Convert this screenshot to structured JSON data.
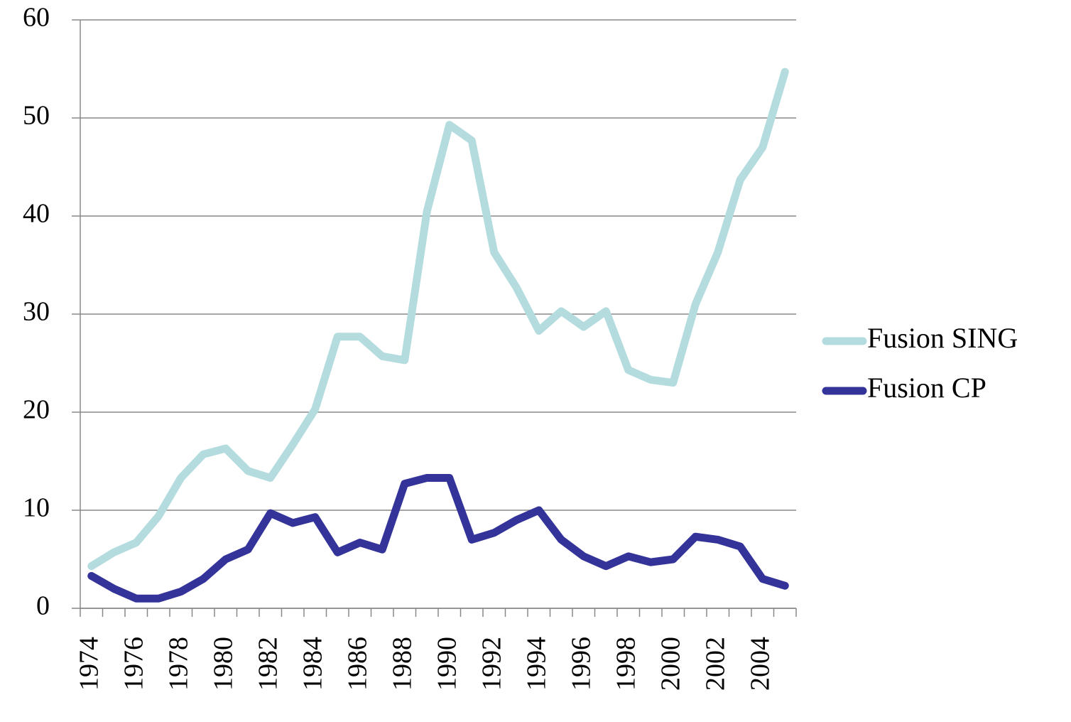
{
  "chart_data": {
    "type": "line",
    "categories": [
      "1974",
      null,
      "1976",
      null,
      "1978",
      null,
      "1980",
      null,
      "1982",
      null,
      "1984",
      null,
      "1986",
      null,
      "1988",
      null,
      "1990",
      null,
      "1992",
      null,
      "1994",
      null,
      "1996",
      null,
      "1998",
      null,
      "2000",
      null,
      "2002",
      null,
      "2004",
      null
    ],
    "series": [
      {
        "name": "Fusion SING",
        "color": "#b4dcdf",
        "values": [
          4.3,
          5.7,
          6.7,
          9.4,
          13.3,
          15.7,
          16.3,
          14,
          13.3,
          16.7,
          20.3,
          27.7,
          27.7,
          25.7,
          25.3,
          40.5,
          49.3,
          47.7,
          36.3,
          32.7,
          28.3,
          30.3,
          28.7,
          30.3,
          24.3,
          23.3,
          23,
          31,
          36.3,
          43.7,
          47,
          54.7
        ]
      },
      {
        "name": "Fusion CP",
        "color": "#333399",
        "values": [
          3.3,
          2,
          1,
          1,
          1.7,
          3,
          5,
          6,
          9.7,
          8.7,
          9.3,
          5.7,
          6.7,
          6,
          12.7,
          13.3,
          13.3,
          7,
          7.7,
          9,
          10,
          7,
          5.3,
          4.3,
          5.3,
          4.7,
          5,
          7.3,
          7,
          6.3,
          3,
          2.3
        ]
      }
    ],
    "ylim": [
      0,
      60
    ],
    "yticks": [
      0,
      10,
      20,
      30,
      40,
      50,
      60
    ],
    "grid": true,
    "legend": "right"
  }
}
